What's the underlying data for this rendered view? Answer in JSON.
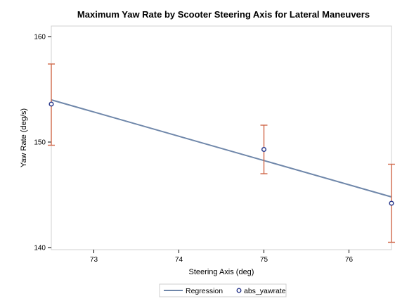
{
  "chart_data": {
    "type": "scatter",
    "title": "Maximum Yaw Rate by Scooter Steering Axis for Lateral Maneuvers",
    "xlabel": "Steering Axis (deg)",
    "ylabel": "Yaw Rate (deg/s)",
    "xlim": [
      72.5,
      76.5
    ],
    "ylim": [
      139.8,
      161.0
    ],
    "x_ticks": [
      73,
      74,
      75,
      76
    ],
    "y_ticks": [
      140,
      150,
      160
    ],
    "grid": false,
    "legend_position": "bottom",
    "series": [
      {
        "name": "abs_yawrate",
        "type": "scatter",
        "marker": "circle",
        "color": "#2b3a8c",
        "points": [
          {
            "x": 72.5,
            "y": 153.6,
            "lower": 149.7,
            "upper": 157.4
          },
          {
            "x": 75.0,
            "y": 149.3,
            "lower": 147.0,
            "upper": 151.6
          },
          {
            "x": 76.5,
            "y": 144.2,
            "lower": 140.5,
            "upper": 147.9
          }
        ],
        "error_bar_color": "#d0684a"
      },
      {
        "name": "Regression",
        "type": "line",
        "color": "#6f87aa",
        "x": [
          72.5,
          76.5
        ],
        "y": [
          154.0,
          144.8
        ]
      }
    ]
  }
}
